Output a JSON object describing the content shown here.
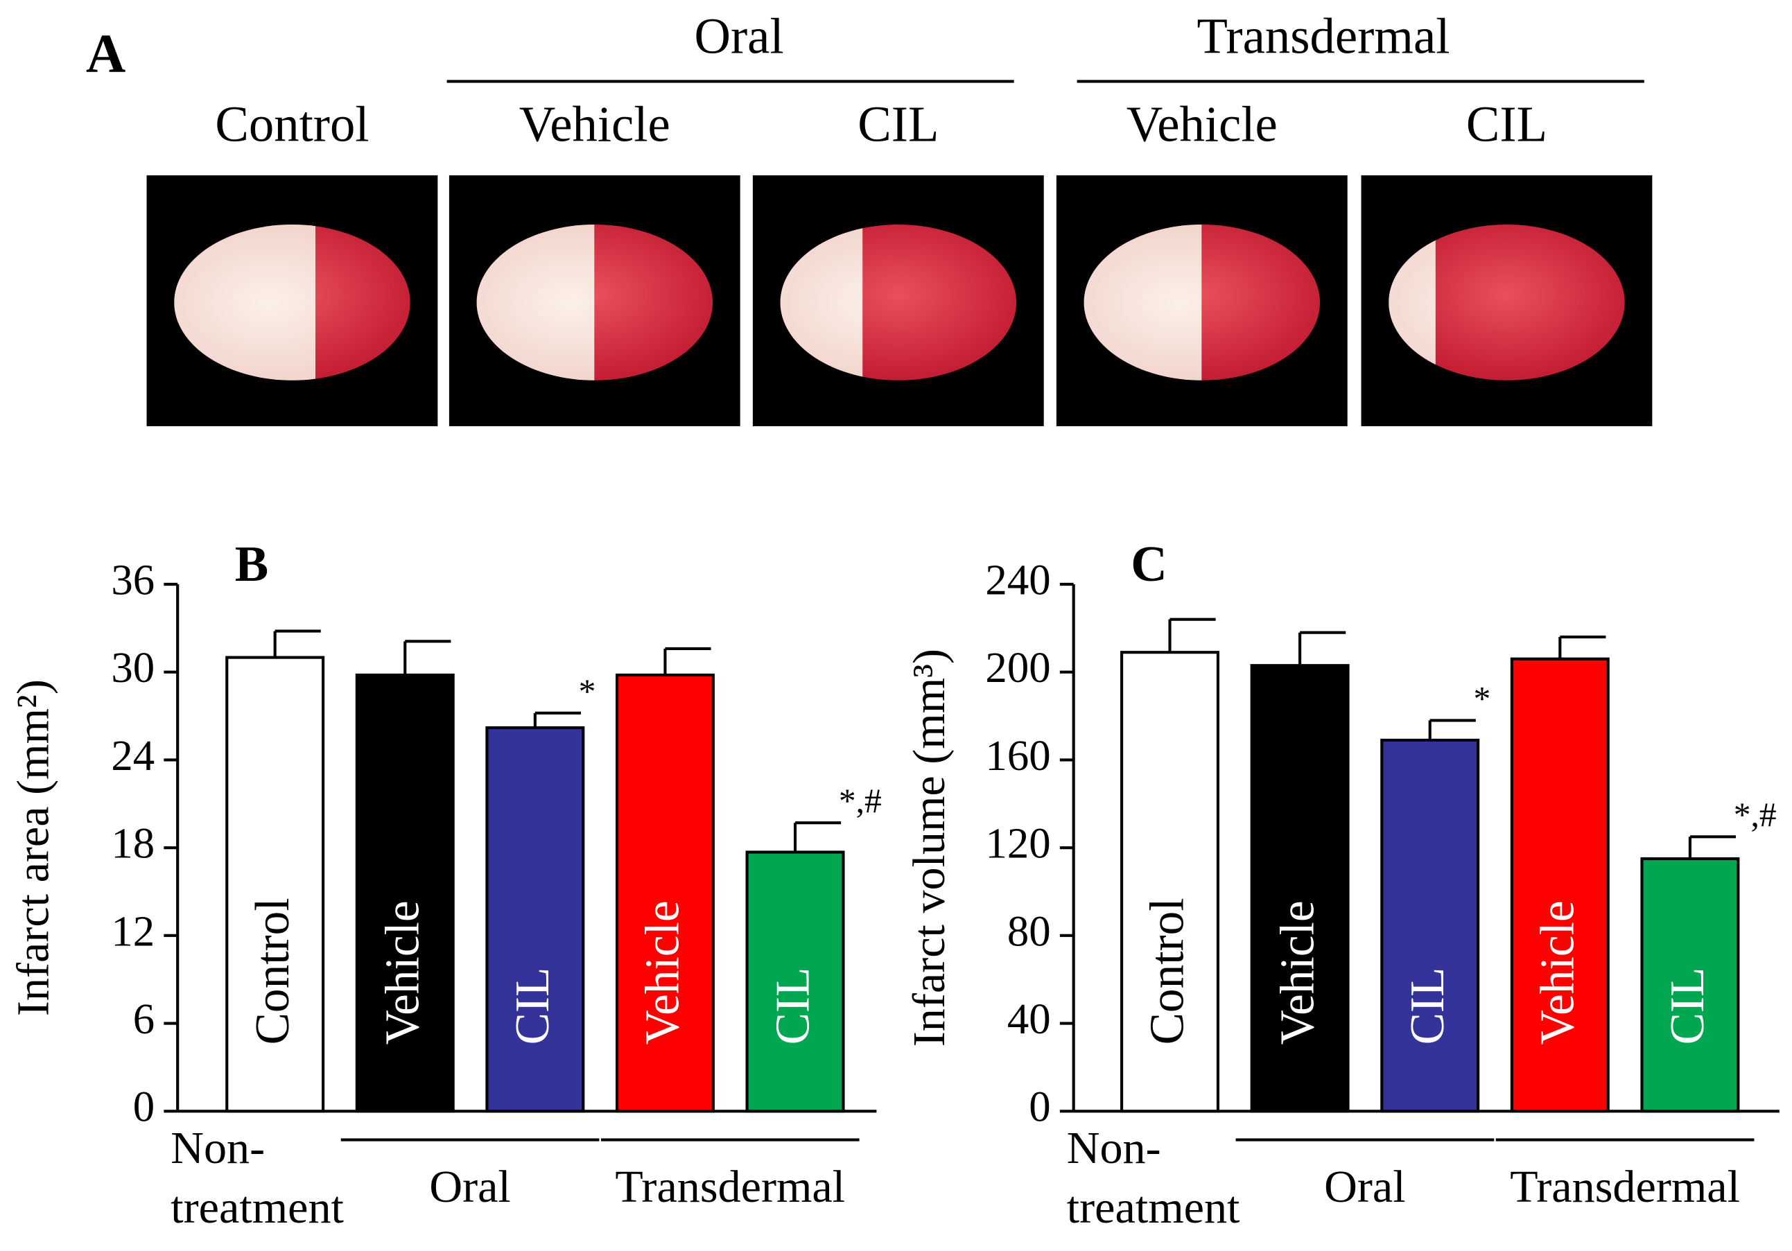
{
  "panel_a": {
    "label": "A",
    "group_labels": [
      "Oral",
      "Transdermal"
    ],
    "column_labels": [
      "Control",
      "Vehicle",
      "CIL",
      "Vehicle",
      "CIL"
    ]
  },
  "chart_data": [
    {
      "type": "bar",
      "panel": "B",
      "ylabel": "Infarct area (mm²)",
      "categories": [
        "Control",
        "Vehicle",
        "CIL",
        "Vehicle",
        "CIL"
      ],
      "values": [
        31,
        29.8,
        26.2,
        29.8,
        17.7
      ],
      "errors": [
        1.8,
        2.3,
        1.0,
        1.8,
        2.0
      ],
      "colors": [
        "#ffffff",
        "#000000",
        "#333399",
        "#ff0000",
        "#00a650"
      ],
      "annotations": [
        null,
        null,
        "*",
        null,
        "*,#"
      ],
      "groups": [
        {
          "label": [
            "Non-",
            "treatment"
          ],
          "members": [
            0
          ]
        },
        {
          "label": [
            "Oral"
          ],
          "members": [
            1,
            2
          ]
        },
        {
          "label": [
            "Transdermal"
          ],
          "members": [
            3,
            4
          ]
        }
      ],
      "ylim": [
        0,
        36
      ],
      "yticks": [
        0,
        6,
        12,
        18,
        24,
        30,
        36
      ]
    },
    {
      "type": "bar",
      "panel": "C",
      "ylabel": "Infarct volume (mm³)",
      "categories": [
        "Control",
        "Vehicle",
        "CIL",
        "Vehicle",
        "CIL"
      ],
      "values": [
        209,
        203,
        169,
        206,
        115
      ],
      "errors": [
        15,
        15,
        9,
        10,
        10
      ],
      "colors": [
        "#ffffff",
        "#000000",
        "#333399",
        "#ff0000",
        "#00a650"
      ],
      "annotations": [
        null,
        null,
        "*",
        null,
        "*,#"
      ],
      "groups": [
        {
          "label": [
            "Non-",
            "treatment"
          ],
          "members": [
            0
          ]
        },
        {
          "label": [
            "Oral"
          ],
          "members": [
            1,
            2
          ]
        },
        {
          "label": [
            "Transdermal"
          ],
          "members": [
            3,
            4
          ]
        }
      ],
      "ylim": [
        0,
        240
      ],
      "yticks": [
        0,
        40,
        80,
        120,
        160,
        200,
        240
      ]
    }
  ]
}
